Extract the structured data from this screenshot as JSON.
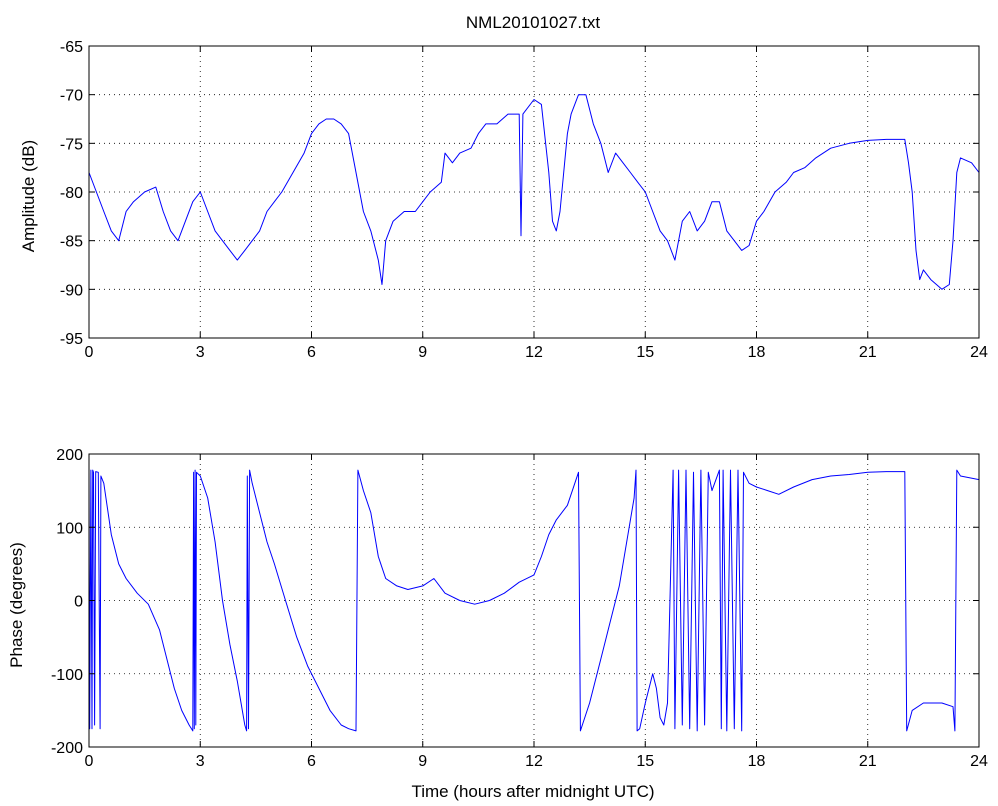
{
  "figure": {
    "title": "NML20101027.txt",
    "xlabel": "Time (hours after midnight UTC)"
  },
  "colors": {
    "trace": "#0000ff",
    "grid": "#000000",
    "axes": "#000000",
    "background": "#ffffff"
  },
  "chart_data": [
    {
      "type": "line",
      "ylabel": "Amplitude (dB)",
      "xlim": [
        0,
        24
      ],
      "ylim": [
        -95,
        -65
      ],
      "xticks": [
        0,
        3,
        6,
        9,
        12,
        15,
        18,
        21,
        24
      ],
      "yticks": [
        -65,
        -70,
        -75,
        -80,
        -85,
        -90,
        -95
      ],
      "grid": "dotted",
      "series": [
        {
          "points": [
            [
              0,
              -78
            ],
            [
              0.2,
              -80
            ],
            [
              0.4,
              -82
            ],
            [
              0.6,
              -84
            ],
            [
              0.8,
              -85
            ],
            [
              1.0,
              -82
            ],
            [
              1.2,
              -81
            ],
            [
              1.5,
              -80
            ],
            [
              1.8,
              -79.5
            ],
            [
              2.0,
              -82
            ],
            [
              2.2,
              -84
            ],
            [
              2.4,
              -85
            ],
            [
              2.6,
              -83
            ],
            [
              2.8,
              -81
            ],
            [
              3.0,
              -80
            ],
            [
              3.2,
              -82
            ],
            [
              3.4,
              -84
            ],
            [
              3.6,
              -85
            ],
            [
              3.8,
              -86
            ],
            [
              4.0,
              -87
            ],
            [
              4.2,
              -86
            ],
            [
              4.4,
              -85
            ],
            [
              4.6,
              -84
            ],
            [
              4.8,
              -82
            ],
            [
              5.0,
              -81
            ],
            [
              5.2,
              -80
            ],
            [
              5.5,
              -78
            ],
            [
              5.8,
              -76
            ],
            [
              6.0,
              -74
            ],
            [
              6.2,
              -73
            ],
            [
              6.4,
              -72.5
            ],
            [
              6.6,
              -72.5
            ],
            [
              6.8,
              -73
            ],
            [
              7.0,
              -74
            ],
            [
              7.2,
              -78
            ],
            [
              7.4,
              -82
            ],
            [
              7.6,
              -84
            ],
            [
              7.8,
              -87
            ],
            [
              7.9,
              -89.5
            ],
            [
              8.0,
              -85
            ],
            [
              8.2,
              -83
            ],
            [
              8.5,
              -82
            ],
            [
              8.8,
              -82
            ],
            [
              9.0,
              -81
            ],
            [
              9.2,
              -80
            ],
            [
              9.5,
              -79
            ],
            [
              9.6,
              -76
            ],
            [
              9.8,
              -77
            ],
            [
              10.0,
              -76
            ],
            [
              10.3,
              -75.5
            ],
            [
              10.5,
              -74
            ],
            [
              10.7,
              -73
            ],
            [
              11.0,
              -73
            ],
            [
              11.3,
              -72
            ],
            [
              11.5,
              -72
            ],
            [
              11.6,
              -72
            ],
            [
              11.65,
              -84.5
            ],
            [
              11.7,
              -72
            ],
            [
              12.0,
              -70.5
            ],
            [
              12.2,
              -71
            ],
            [
              12.4,
              -78
            ],
            [
              12.5,
              -83
            ],
            [
              12.6,
              -84
            ],
            [
              12.7,
              -82
            ],
            [
              12.9,
              -74
            ],
            [
              13.0,
              -72
            ],
            [
              13.2,
              -70
            ],
            [
              13.4,
              -70
            ],
            [
              13.6,
              -73
            ],
            [
              13.8,
              -75
            ],
            [
              14.0,
              -78
            ],
            [
              14.2,
              -76
            ],
            [
              14.4,
              -77
            ],
            [
              14.6,
              -78
            ],
            [
              14.8,
              -79
            ],
            [
              15.0,
              -80
            ],
            [
              15.2,
              -82
            ],
            [
              15.4,
              -84
            ],
            [
              15.6,
              -85
            ],
            [
              15.8,
              -87
            ],
            [
              16.0,
              -83
            ],
            [
              16.2,
              -82
            ],
            [
              16.4,
              -84
            ],
            [
              16.6,
              -83
            ],
            [
              16.8,
              -81
            ],
            [
              17.0,
              -81
            ],
            [
              17.2,
              -84
            ],
            [
              17.4,
              -85
            ],
            [
              17.6,
              -86
            ],
            [
              17.8,
              -85.5
            ],
            [
              18.0,
              -83
            ],
            [
              18.2,
              -82
            ],
            [
              18.5,
              -80
            ],
            [
              18.8,
              -79
            ],
            [
              19.0,
              -78
            ],
            [
              19.3,
              -77.5
            ],
            [
              19.6,
              -76.5
            ],
            [
              20.0,
              -75.5
            ],
            [
              20.5,
              -75
            ],
            [
              21.0,
              -74.7
            ],
            [
              21.5,
              -74.6
            ],
            [
              22.0,
              -74.6
            ],
            [
              22.1,
              -77
            ],
            [
              22.2,
              -80
            ],
            [
              22.3,
              -86
            ],
            [
              22.4,
              -89
            ],
            [
              22.5,
              -88
            ],
            [
              22.7,
              -89
            ],
            [
              23.0,
              -90
            ],
            [
              23.2,
              -89.5
            ],
            [
              23.3,
              -85
            ],
            [
              23.4,
              -78
            ],
            [
              23.5,
              -76.5
            ],
            [
              23.8,
              -77
            ],
            [
              24.0,
              -78
            ]
          ]
        }
      ]
    },
    {
      "type": "line",
      "ylabel": "Phase (degrees)",
      "xlim": [
        0,
        24
      ],
      "ylim": [
        -200,
        200
      ],
      "xticks": [
        0,
        3,
        6,
        9,
        12,
        15,
        18,
        21,
        24
      ],
      "yticks": [
        200,
        100,
        0,
        -100,
        -200
      ],
      "grid": "dotted",
      "series": [
        {
          "points": [
            [
              0,
              180
            ],
            [
              0.02,
              -175
            ],
            [
              0.05,
              178
            ],
            [
              0.08,
              -175
            ],
            [
              0.1,
              178
            ],
            [
              0.12,
              175
            ],
            [
              0.15,
              -170
            ],
            [
              0.18,
              176
            ],
            [
              0.25,
              175
            ],
            [
              0.3,
              -175
            ],
            [
              0.32,
              170
            ],
            [
              0.4,
              160
            ],
            [
              0.6,
              90
            ],
            [
              0.8,
              50
            ],
            [
              1.0,
              30
            ],
            [
              1.3,
              10
            ],
            [
              1.6,
              -5
            ],
            [
              1.9,
              -40
            ],
            [
              2.1,
              -80
            ],
            [
              2.3,
              -120
            ],
            [
              2.5,
              -150
            ],
            [
              2.7,
              -170
            ],
            [
              2.8,
              -178
            ],
            [
              2.82,
              175
            ],
            [
              2.84,
              -175
            ],
            [
              2.86,
              178
            ],
            [
              2.88,
              -170
            ],
            [
              2.9,
              175
            ],
            [
              3.0,
              170
            ],
            [
              3.2,
              140
            ],
            [
              3.4,
              80
            ],
            [
              3.6,
              0
            ],
            [
              3.8,
              -60
            ],
            [
              4.0,
              -110
            ],
            [
              4.2,
              -170
            ],
            [
              4.25,
              -178
            ],
            [
              4.27,
              170
            ],
            [
              4.3,
              -175
            ],
            [
              4.33,
              178
            ],
            [
              4.4,
              160
            ],
            [
              4.6,
              120
            ],
            [
              4.8,
              80
            ],
            [
              5.0,
              50
            ],
            [
              5.3,
              0
            ],
            [
              5.6,
              -50
            ],
            [
              5.9,
              -90
            ],
            [
              6.2,
              -120
            ],
            [
              6.5,
              -150
            ],
            [
              6.8,
              -170
            ],
            [
              7.0,
              -175
            ],
            [
              7.2,
              -178
            ],
            [
              7.25,
              178
            ],
            [
              7.4,
              150
            ],
            [
              7.6,
              120
            ],
            [
              7.8,
              60
            ],
            [
              8.0,
              30
            ],
            [
              8.3,
              20
            ],
            [
              8.6,
              15
            ],
            [
              9.0,
              20
            ],
            [
              9.3,
              30
            ],
            [
              9.6,
              10
            ],
            [
              10.0,
              0
            ],
            [
              10.4,
              -5
            ],
            [
              10.8,
              0
            ],
            [
              11.2,
              10
            ],
            [
              11.6,
              25
            ],
            [
              12.0,
              35
            ],
            [
              12.2,
              60
            ],
            [
              12.4,
              90
            ],
            [
              12.6,
              110
            ],
            [
              12.9,
              130
            ],
            [
              13.1,
              160
            ],
            [
              13.2,
              175
            ],
            [
              13.25,
              -178
            ],
            [
              13.5,
              -140
            ],
            [
              13.8,
              -80
            ],
            [
              14.0,
              -40
            ],
            [
              14.3,
              20
            ],
            [
              14.5,
              80
            ],
            [
              14.7,
              140
            ],
            [
              14.75,
              178
            ],
            [
              14.78,
              -178
            ],
            [
              14.85,
              -175
            ],
            [
              15.0,
              -140
            ],
            [
              15.2,
              -100
            ],
            [
              15.3,
              -120
            ],
            [
              15.4,
              -160
            ],
            [
              15.5,
              -170
            ],
            [
              15.6,
              -140
            ],
            [
              15.75,
              178
            ],
            [
              15.8,
              -175
            ],
            [
              15.9,
              178
            ],
            [
              16.0,
              -170
            ],
            [
              16.1,
              178
            ],
            [
              16.2,
              -175
            ],
            [
              16.3,
              175
            ],
            [
              16.4,
              -178
            ],
            [
              16.5,
              178
            ],
            [
              16.6,
              -170
            ],
            [
              16.7,
              175
            ],
            [
              16.8,
              150
            ],
            [
              17.0,
              178
            ],
            [
              17.05,
              -175
            ],
            [
              17.1,
              178
            ],
            [
              17.2,
              -178
            ],
            [
              17.3,
              178
            ],
            [
              17.4,
              -175
            ],
            [
              17.5,
              178
            ],
            [
              17.6,
              -178
            ],
            [
              17.65,
              175
            ],
            [
              17.8,
              160
            ],
            [
              18.0,
              155
            ],
            [
              18.3,
              150
            ],
            [
              18.6,
              145
            ],
            [
              19.0,
              155
            ],
            [
              19.5,
              165
            ],
            [
              20.0,
              170
            ],
            [
              20.5,
              172
            ],
            [
              21.0,
              175
            ],
            [
              21.5,
              176
            ],
            [
              22.0,
              176
            ],
            [
              22.05,
              -178
            ],
            [
              22.2,
              -150
            ],
            [
              22.5,
              -140
            ],
            [
              23.0,
              -140
            ],
            [
              23.3,
              -145
            ],
            [
              23.35,
              -178
            ],
            [
              23.4,
              178
            ],
            [
              23.5,
              170
            ],
            [
              24.0,
              165
            ]
          ]
        }
      ]
    }
  ]
}
